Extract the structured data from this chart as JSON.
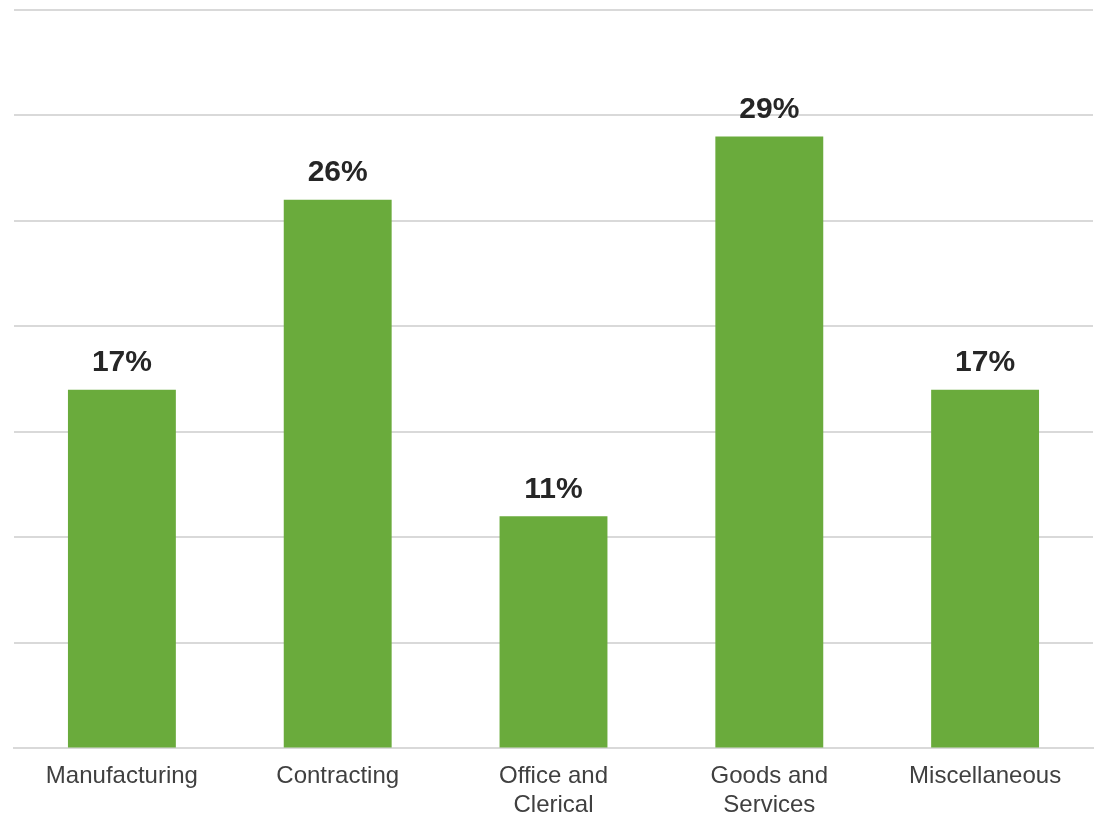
{
  "chart_data": {
    "type": "bar",
    "categories": [
      "Manufacturing",
      "Contracting",
      "Office and Clerical",
      "Goods and Services",
      "Miscellaneous"
    ],
    "values": [
      17,
      26,
      11,
      29,
      17
    ],
    "value_labels": [
      "17%",
      "26%",
      "11%",
      "29%",
      "17%"
    ],
    "color": "#6aab3c",
    "ylim": [
      0,
      35
    ],
    "yticks": [
      {
        "value": 0,
        "label": null
      },
      {
        "value": 5,
        "label": null
      },
      {
        "value": 10,
        "label": null
      },
      {
        "value": 15,
        "label": null
      },
      {
        "value": 20,
        "label": null
      },
      {
        "value": 25,
        "label": null
      },
      {
        "value": 30,
        "label": null
      },
      {
        "value": 35,
        "label": null
      }
    ],
    "grid": "y",
    "tick_labels": "x",
    "legend": false
  }
}
